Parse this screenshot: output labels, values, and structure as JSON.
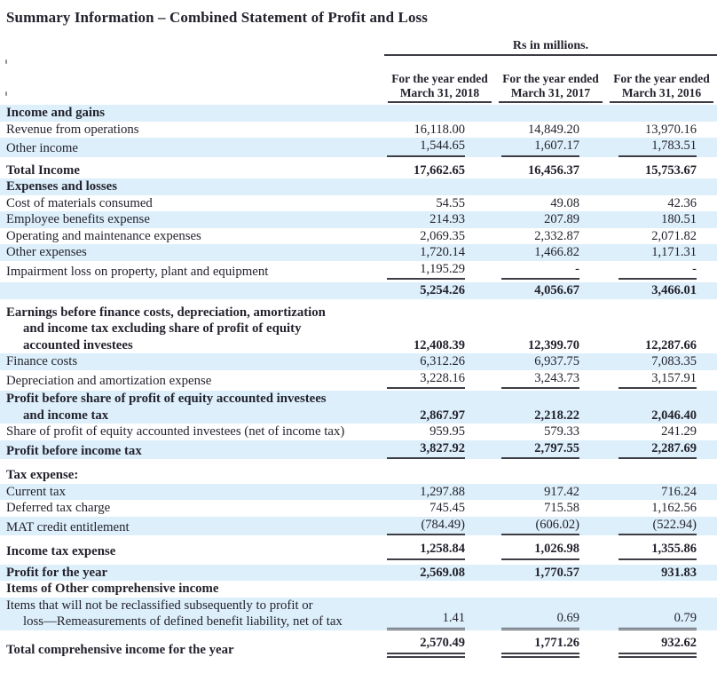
{
  "page": {
    "title": "Summary Information – Combined Statement of Profit and Loss"
  },
  "header": {
    "units_label": "Rs in millions.",
    "columns": [
      {
        "line1": "For the year ended",
        "line2": "March 31, 2018"
      },
      {
        "line1": "For the year ended",
        "line2": "March 31, 2017"
      },
      {
        "line1": "For the year ended",
        "line2": "March 31, 2016"
      }
    ]
  },
  "table": {
    "rows": [
      {
        "lines": [
          "Income and gains"
        ],
        "bold": true,
        "shade": true,
        "values": null
      },
      {
        "lines": [
          "Revenue from operations"
        ],
        "values": [
          "16,118.00",
          "14,849.20",
          "13,970.16"
        ]
      },
      {
        "lines": [
          "Other income"
        ],
        "shade": true,
        "rule": "single",
        "values": [
          "1,544.65",
          "1,607.17",
          "1,783.51"
        ]
      },
      {
        "lines": [
          "Total Income"
        ],
        "bold": true,
        "gap": 6,
        "values": [
          "17,662.65",
          "16,456.37",
          "15,753.67"
        ]
      },
      {
        "lines": [
          "Expenses and losses"
        ],
        "bold": true,
        "shade": true,
        "values": null
      },
      {
        "lines": [
          "Cost of materials consumed"
        ],
        "values": [
          "54.55",
          "49.08",
          "42.36"
        ]
      },
      {
        "lines": [
          "Employee benefits expense"
        ],
        "shade": true,
        "values": [
          "214.93",
          "207.89",
          "180.51"
        ]
      },
      {
        "lines": [
          "Operating and maintenance expenses"
        ],
        "values": [
          "2,069.35",
          "2,332.87",
          "2,071.82"
        ]
      },
      {
        "lines": [
          "Other expenses"
        ],
        "shade": true,
        "values": [
          "1,720.14",
          "1,466.82",
          "1,171.31"
        ]
      },
      {
        "lines": [
          "Impairment loss on property, plant and equipment"
        ],
        "rule": "single",
        "values": [
          "1,195.29",
          "-",
          "-"
        ]
      },
      {
        "lines": [
          ""
        ],
        "bold": true,
        "shade": true,
        "gap": 3,
        "values": [
          "5,254.26",
          "4,056.67",
          "3,466.01"
        ]
      },
      {
        "lines": [
          "Earnings before finance costs, depreciation, amortization",
          "and income tax excluding share of profit of equity",
          "accounted investees"
        ],
        "bold": true,
        "gap": 6,
        "values": [
          "12,408.39",
          "12,399.70",
          "12,287.66"
        ]
      },
      {
        "lines": [
          "Finance costs"
        ],
        "shade": true,
        "values": [
          "6,312.26",
          "6,937.75",
          "7,083.35"
        ]
      },
      {
        "lines": [
          "Depreciation and amortization expense"
        ],
        "rule": "single",
        "values": [
          "3,228.16",
          "3,243.73",
          "3,157.91"
        ]
      },
      {
        "lines": [
          "Profit before share of profit of equity accounted investees",
          "and income tax"
        ],
        "bold": true,
        "shade": true,
        "gap": 2,
        "values": [
          "2,867.97",
          "2,218.22",
          "2,046.40"
        ]
      },
      {
        "lines": [
          "Share of profit of equity accounted investees (net of income tax)"
        ],
        "values": [
          "959.95",
          "579.33",
          "241.29"
        ]
      },
      {
        "lines": [
          "Profit before income tax"
        ],
        "bold": true,
        "shade": true,
        "rule": "single",
        "values": [
          "3,827.92",
          "2,797.55",
          "2,287.69"
        ]
      },
      {
        "lines": [
          "Tax expense:"
        ],
        "bold": true,
        "gap": 9,
        "values": null
      },
      {
        "lines": [
          "Current tax"
        ],
        "shade": true,
        "values": [
          "1,297.88",
          "917.42",
          "716.24"
        ]
      },
      {
        "lines": [
          "Deferred tax charge"
        ],
        "values": [
          "745.45",
          "715.58",
          "1,162.56"
        ]
      },
      {
        "lines": [
          "MAT credit entitlement"
        ],
        "shade": true,
        "rule": "single",
        "values": [
          "(784.49)",
          "(606.02)",
          "(522.94)"
        ]
      },
      {
        "lines": [
          "Income tax expense"
        ],
        "bold": true,
        "gap": 6,
        "rule": "single",
        "values": [
          "1,258.84",
          "1,026.98",
          "1,355.86"
        ]
      },
      {
        "lines": [
          "Profit for the year"
        ],
        "bold": true,
        "shade": true,
        "gap": 5,
        "values": [
          "2,569.08",
          "1,770.57",
          "931.83"
        ]
      },
      {
        "lines": [
          "Items of Other comprehensive income"
        ],
        "bold": true,
        "values": null
      },
      {
        "lines": [
          "Items that will not be reclassified subsequently to profit or",
          "loss—Remeasurements of defined benefit liability, net of tax"
        ],
        "shade": true,
        "rule": "thin-double",
        "values": [
          "1.41",
          "0.69",
          "0.79"
        ]
      },
      {
        "lines": [
          "Total comprehensive income for the year"
        ],
        "bold": true,
        "gap": 5,
        "rule": "double",
        "values": [
          "2,570.49",
          "1,771.26",
          "932.62"
        ]
      }
    ]
  },
  "colors": {
    "stripe": "#ddeffa",
    "text": "#23232e",
    "rule": "#3e3e46"
  }
}
